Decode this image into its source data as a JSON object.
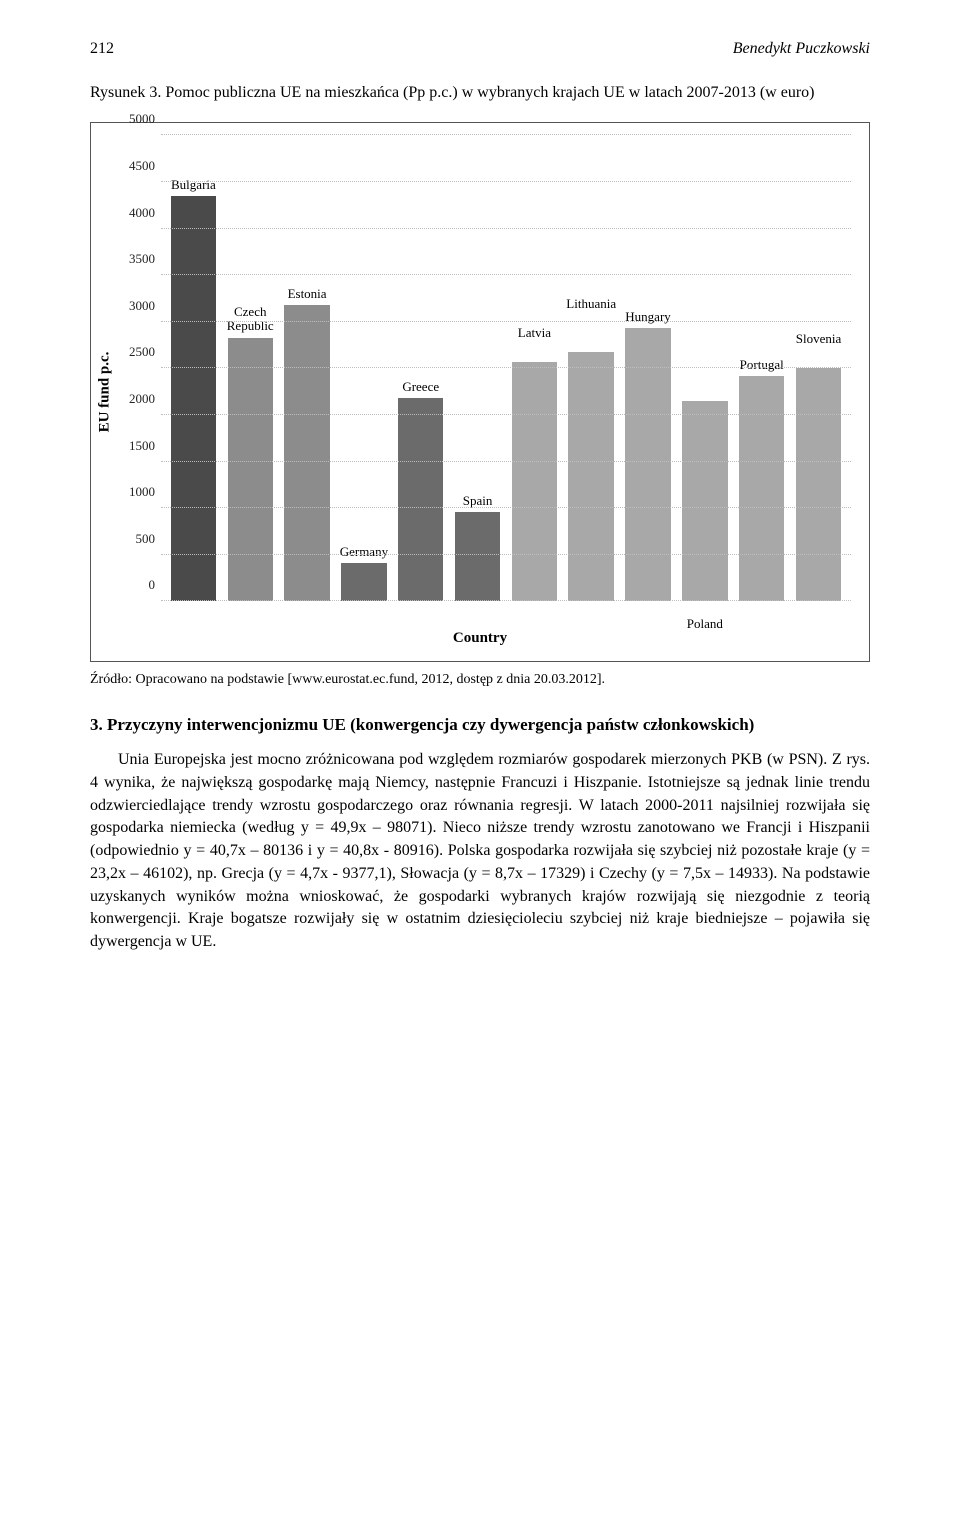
{
  "header": {
    "page_number": "212",
    "running_head": "Benedykt Puczkowski"
  },
  "figure": {
    "caption": "Rysunek 3. Pomoc publiczna UE na mieszkańca (Pp p.c.) w wybranych krajach UE w latach 2007-2013 (w euro)",
    "source": "Źródło: Opracowano na podstawie [www.eurostat.ec.fund, 2012, dostęp z dnia 20.03.2012]."
  },
  "chart": {
    "type": "bar",
    "ylabel": "EU fund p.c.",
    "xlabel": "Country",
    "ylim": [
      0,
      5000
    ],
    "ytick_step": 500,
    "yticks": [
      0,
      500,
      1000,
      1500,
      2000,
      2500,
      3000,
      3500,
      4000,
      4500,
      5000
    ],
    "background_color": "#ffffff",
    "grid_color": "#bdbdbd",
    "axis_font_size": 13,
    "axis_title_fontsize": 15,
    "bars": [
      {
        "label": "Bulgaria",
        "value": 4350,
        "color": "#4a4a4a",
        "label_pos": "above"
      },
      {
        "label": "Czech\nRepublic",
        "value": 2830,
        "color": "#8c8c8c",
        "label_pos": "above"
      },
      {
        "label": "Estonia",
        "value": 3180,
        "color": "#8c8c8c",
        "label_pos": "above"
      },
      {
        "label": "Germany",
        "value": 410,
        "color": "#6b6b6b",
        "label_pos": "above"
      },
      {
        "label": "Greece",
        "value": 2180,
        "color": "#6b6b6b",
        "label_pos": "above"
      },
      {
        "label": "Spain",
        "value": 960,
        "color": "#6b6b6b",
        "label_pos": "above"
      },
      {
        "label": "Latvia",
        "value": 2570,
        "color": "#a8a8a8",
        "label_pos": "above-high"
      },
      {
        "label": "Lithuania",
        "value": 2680,
        "color": "#a8a8a8",
        "label_pos": "above-higher"
      },
      {
        "label": "Hungary",
        "value": 2930,
        "color": "#a8a8a8",
        "label_pos": "above"
      },
      {
        "label": "Poland",
        "value": 2150,
        "color": "#a8a8a8",
        "label_pos": "below"
      },
      {
        "label": "Portugal",
        "value": 2420,
        "color": "#a8a8a8",
        "label_pos": "above"
      },
      {
        "label": "Slovenia",
        "value": 2500,
        "color": "#a8a8a8",
        "label_pos": "above-high"
      }
    ]
  },
  "section": {
    "heading": "3. Przyczyny interwencjonizmu UE (konwergencja czy dywergencja państw członkowskich)",
    "paragraph": "Unia Europejska jest mocno zróżnicowana pod względem rozmiarów gospodarek mierzonych PKB (w PSN). Z rys. 4 wynika, że największą gospodarkę mają Niemcy, następnie Francuzi i Hiszpanie. Istotniejsze są jednak linie trendu odzwierciedlające trendy wzrostu gospodarczego oraz równania regresji. W latach 2000-2011 najsilniej rozwijała się gospodarka niemiecka (według y = 49,9x – 98071). Nieco niższe trendy wzrostu zanotowano we Francji i Hiszpanii (odpowiednio y = 40,7x – 80136 i y = 40,8x - 80916). Polska gospodarka rozwijała się szybciej niż pozostałe kraje (y = 23,2x – 46102), np. Grecja (y = 4,7x - 9377,1), Słowacja (y = 8,7x – 17329) i Czechy (y = 7,5x – 14933). Na podstawie uzyskanych wyników można wnioskować, że gospodarki wybranych krajów rozwijają się niezgodnie z teorią konwergencji. Kraje bogatsze rozwijały się w ostatnim dziesięcioleciu szybciej niż kraje biedniejsze – pojawiła się dywergencja w UE."
  }
}
